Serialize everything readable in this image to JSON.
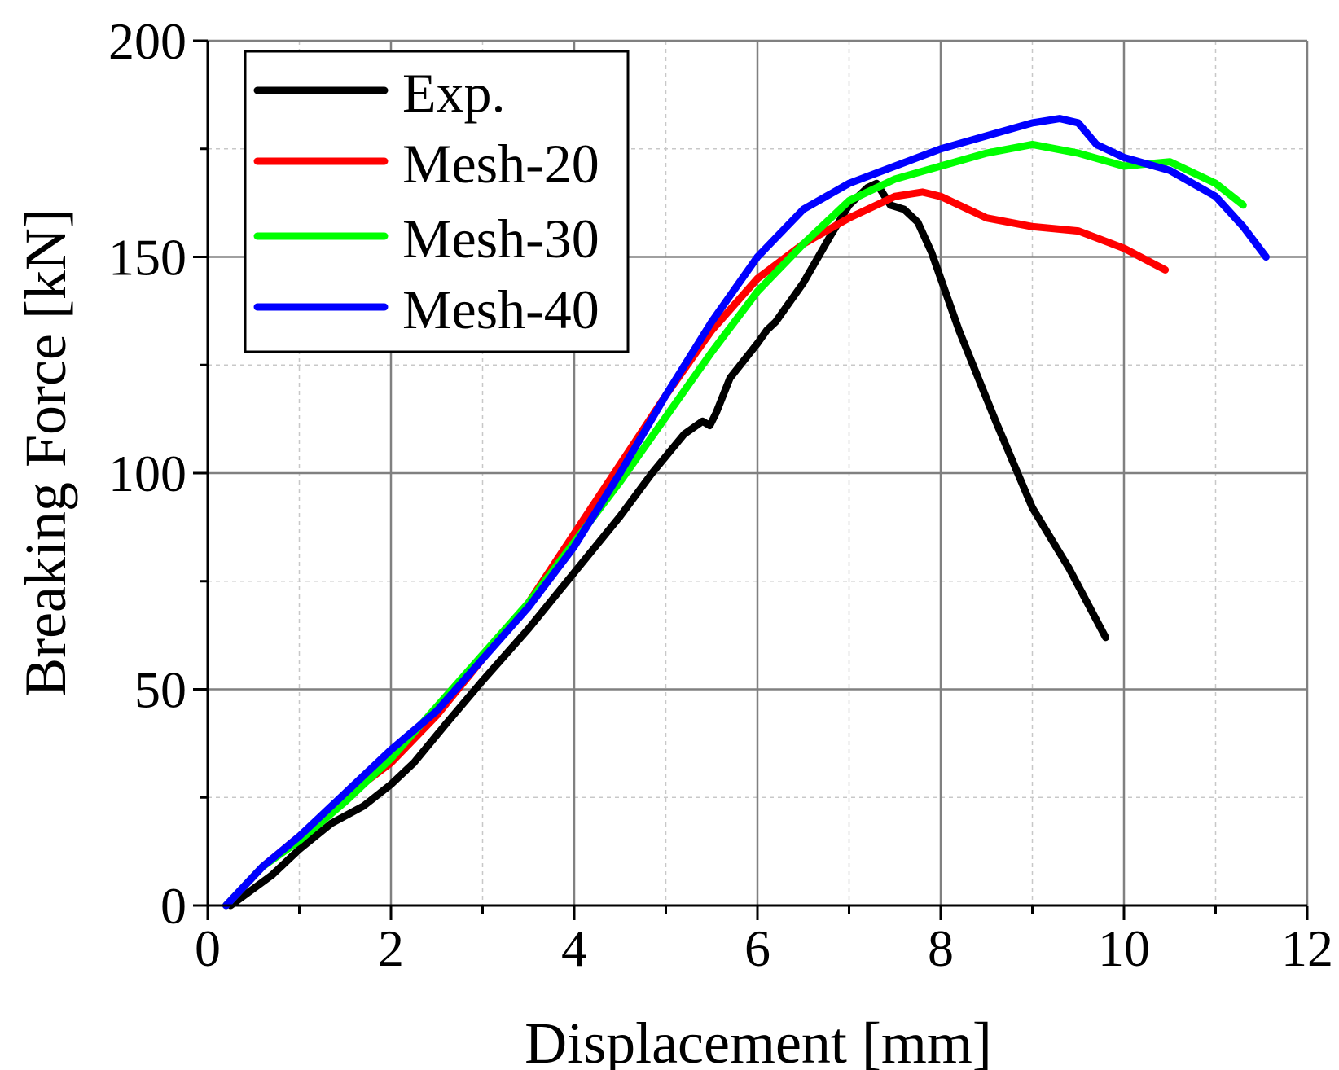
{
  "chart_data": {
    "type": "line",
    "title": "",
    "xlabel": "Displacement [mm]",
    "ylabel": "Breaking Force [kN]",
    "xlim": [
      0,
      12
    ],
    "ylim": [
      0,
      200
    ],
    "xticks": [
      "0",
      "2",
      "4",
      "6",
      "8",
      "10",
      "12"
    ],
    "yticks": [
      "0",
      "50",
      "100",
      "150",
      "200"
    ],
    "grid": true,
    "legend_position": "top-left",
    "series": [
      {
        "name": "Exp.",
        "color": "#000000",
        "x": [
          0.25,
          0.7,
          1.0,
          1.35,
          1.7,
          2.0,
          2.25,
          2.6,
          3.0,
          3.5,
          4.0,
          4.5,
          4.85,
          5.2,
          5.4,
          5.48,
          5.55,
          5.7,
          6.0,
          6.1,
          6.2,
          6.5,
          6.8,
          7.0,
          7.2,
          7.3,
          7.45,
          7.6,
          7.75,
          7.9,
          8.2,
          8.6,
          9.0,
          9.4,
          9.8
        ],
        "y": [
          0,
          7,
          13,
          19,
          23,
          28,
          33,
          42,
          52,
          64,
          77,
          90,
          100,
          109,
          112,
          111,
          114,
          122,
          130,
          133,
          135,
          144,
          155,
          162,
          166,
          167,
          162,
          161,
          158,
          151,
          133,
          112,
          92,
          78,
          62
        ]
      },
      {
        "name": "Mesh-20",
        "color": "#ff0000",
        "x": [
          0.2,
          0.6,
          1.0,
          1.5,
          2.0,
          2.5,
          3.0,
          3.5,
          4.0,
          4.5,
          5.0,
          5.5,
          6.0,
          6.5,
          7.0,
          7.5,
          7.8,
          8.0,
          8.5,
          9.0,
          9.5,
          10.0,
          10.45
        ],
        "y": [
          0,
          9,
          16,
          25,
          33,
          44,
          57,
          70,
          86,
          102,
          118,
          133,
          145,
          153,
          159,
          164,
          165,
          164,
          159,
          157,
          156,
          152,
          147
        ]
      },
      {
        "name": "Mesh-30",
        "color": "#00ff00",
        "x": [
          0.2,
          0.6,
          1.0,
          1.5,
          2.0,
          2.5,
          3.0,
          3.5,
          4.0,
          4.5,
          5.0,
          5.5,
          6.0,
          6.5,
          7.0,
          7.5,
          8.0,
          8.5,
          9.0,
          9.5,
          10.0,
          10.5,
          11.0,
          11.3
        ],
        "y": [
          0,
          9,
          15,
          24,
          34,
          46,
          58,
          70,
          84,
          98,
          113,
          128,
          142,
          153,
          163,
          168,
          171,
          174,
          176,
          174,
          171,
          172,
          167,
          162
        ]
      },
      {
        "name": "Mesh-40",
        "color": "#0000ff",
        "x": [
          0.2,
          0.6,
          1.0,
          1.5,
          2.0,
          2.5,
          3.0,
          3.5,
          4.0,
          4.5,
          5.0,
          5.5,
          6.0,
          6.5,
          7.0,
          7.5,
          8.0,
          8.5,
          9.0,
          9.3,
          9.5,
          9.7,
          10.0,
          10.5,
          11.0,
          11.3,
          11.55
        ],
        "y": [
          0,
          9,
          16,
          26,
          36,
          45,
          57,
          69,
          83,
          100,
          118,
          135,
          150,
          161,
          167,
          171,
          175,
          178,
          181,
          182,
          181,
          176,
          173,
          170,
          164,
          157,
          150
        ]
      }
    ]
  }
}
